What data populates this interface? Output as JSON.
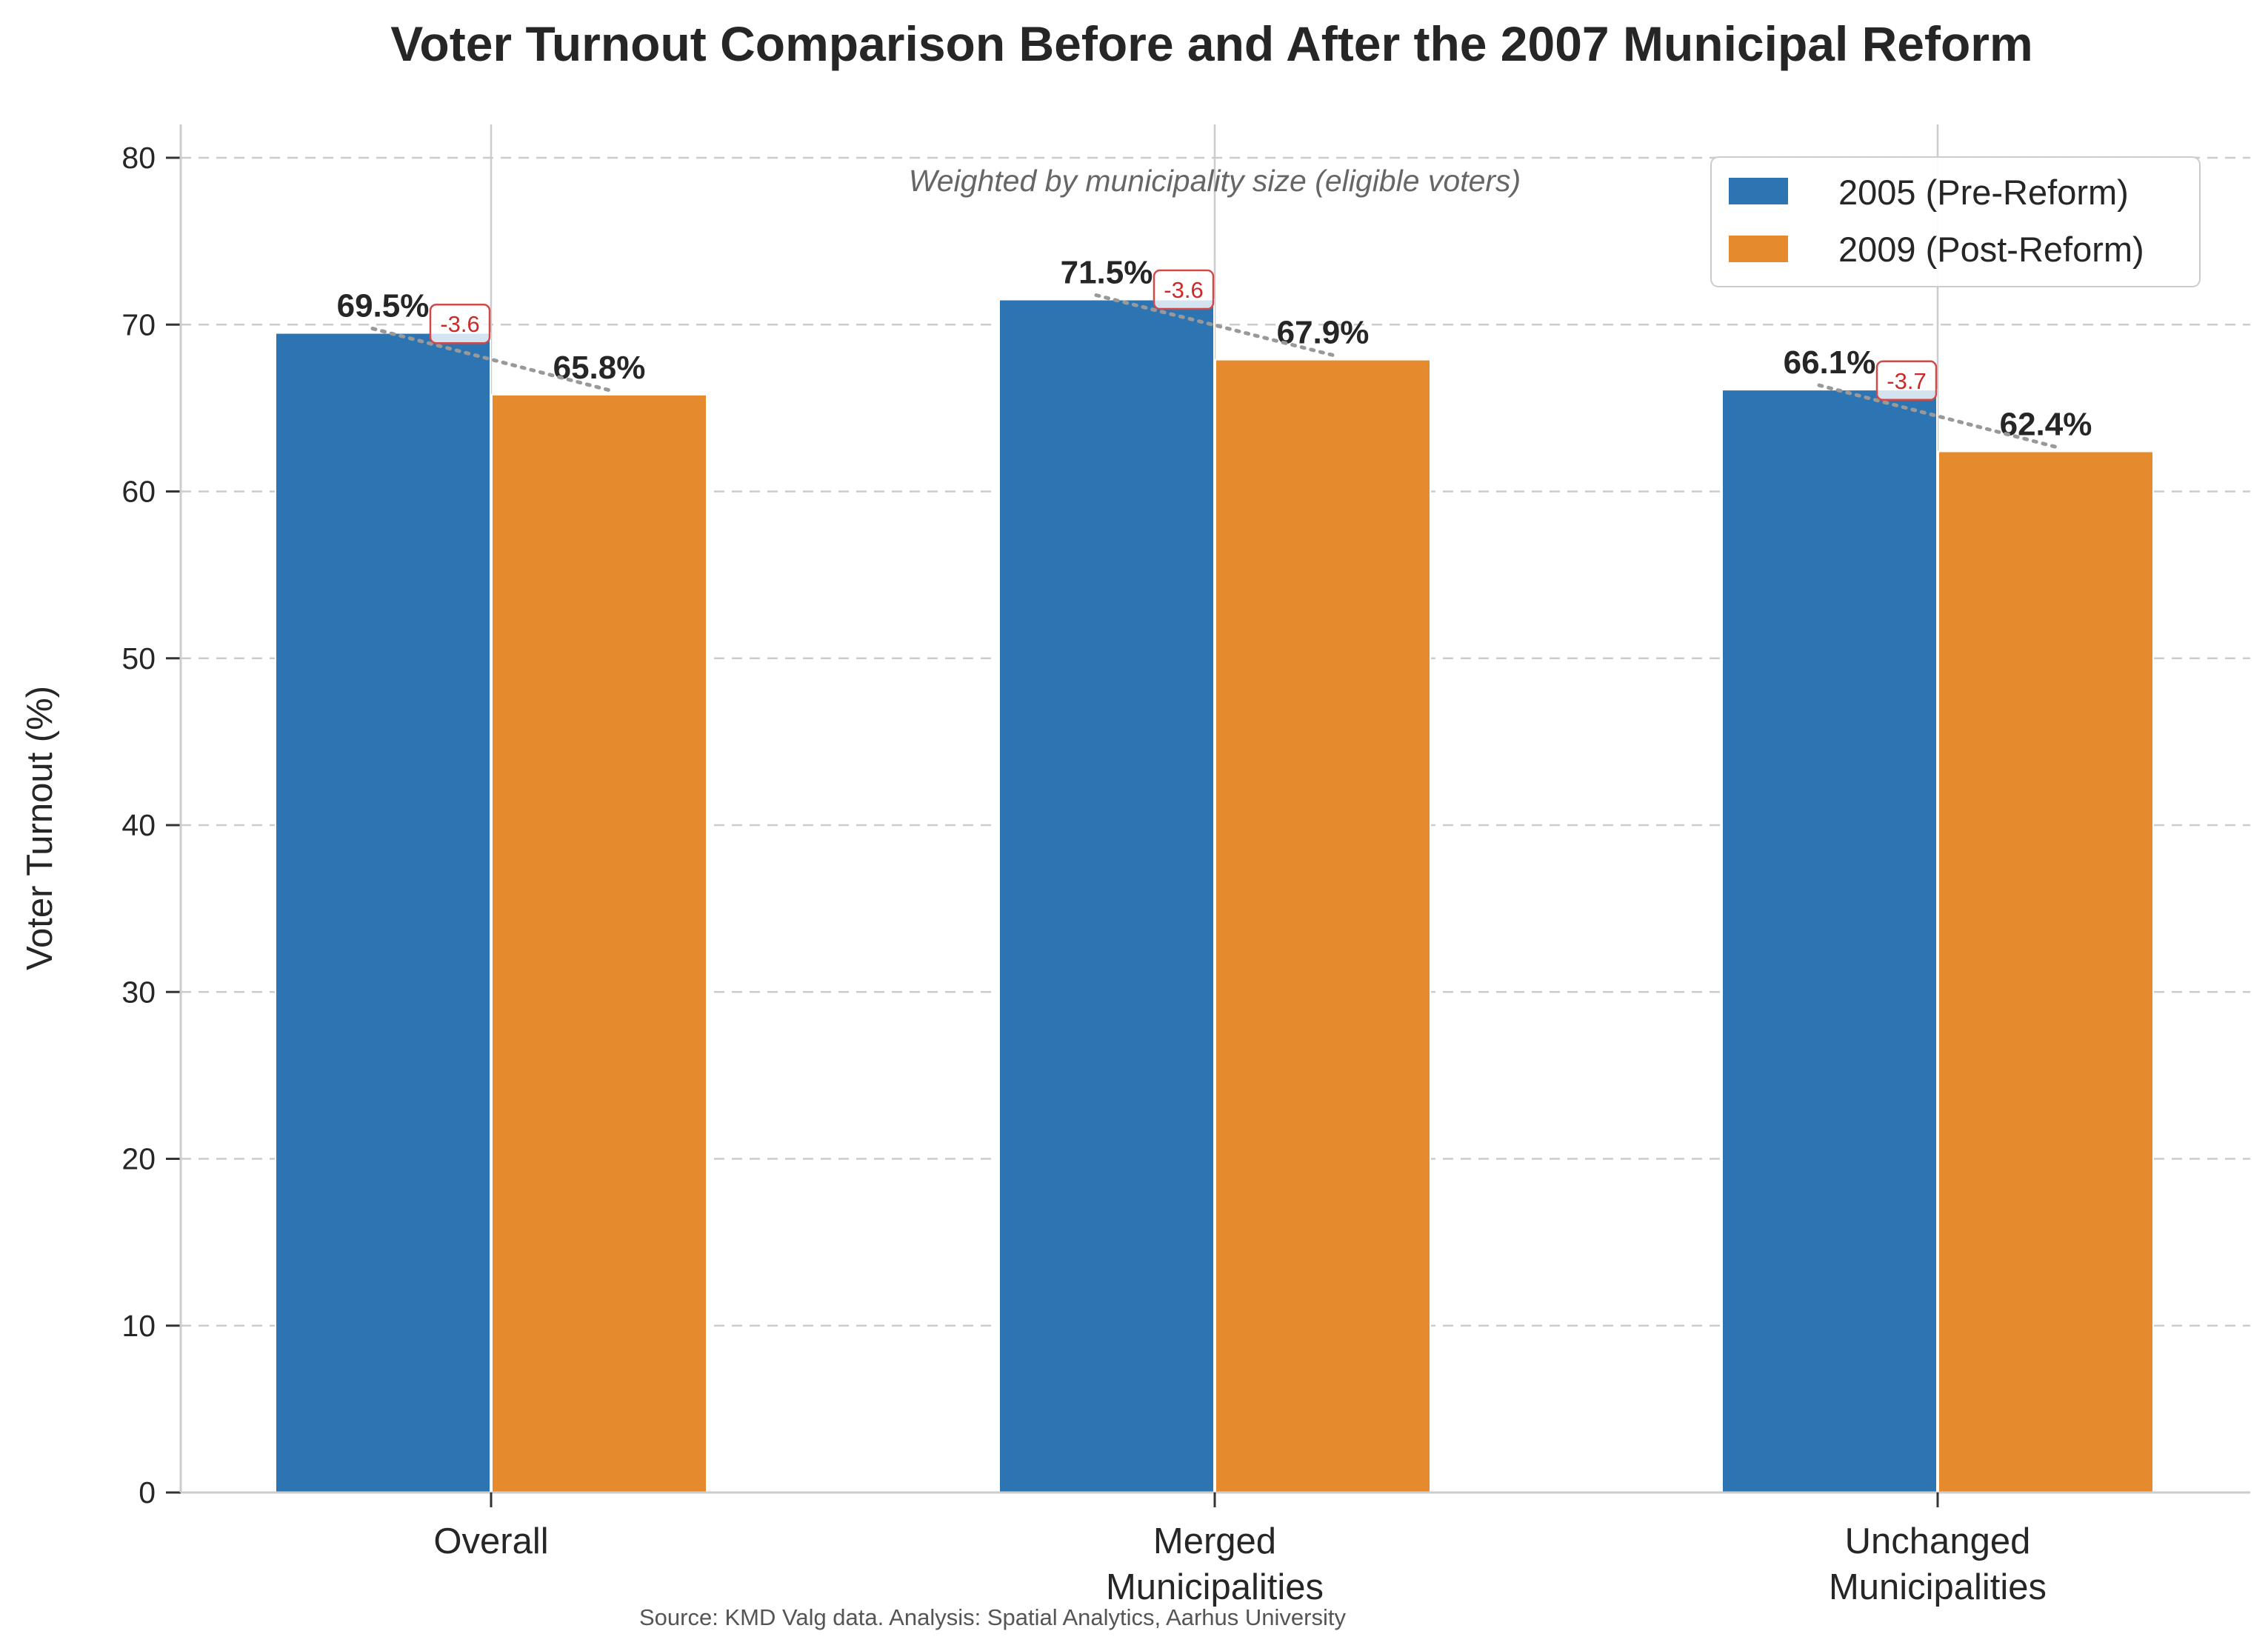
{
  "chart_data": {
    "type": "bar",
    "title": "Voter Turnout Comparison Before and After the 2007 Municipal Reform",
    "subtitle": "Weighted by municipality size (eligible voters)",
    "xlabel": "",
    "ylabel": "Voter Turnout (%)",
    "ylim": [
      0,
      82
    ],
    "yticks": [
      "0",
      "10",
      "20",
      "30",
      "40",
      "50",
      "60",
      "70",
      "80"
    ],
    "grid": "horizontal dashed",
    "legend_position": "top-right",
    "categories": [
      [
        "Overall"
      ],
      [
        "Merged",
        "Municipalities"
      ],
      [
        "Unchanged",
        "Municipalities"
      ]
    ],
    "series": [
      {
        "name": "2005 (Pre-Reform)",
        "color": "#2c74b2",
        "values": [
          69.5,
          71.5,
          66.1
        ],
        "labels": [
          "69.5%",
          "71.5%",
          "66.1%"
        ]
      },
      {
        "name": "2009 (Post-Reform)",
        "color": "#e68a2e",
        "values": [
          65.8,
          67.9,
          62.4
        ],
        "labels": [
          "65.8%",
          "67.9%",
          "62.4%"
        ]
      }
    ],
    "differences": [
      "-3.6",
      "-3.6",
      "-3.7"
    ],
    "source": "Source: KMD Valg data. Analysis: Spatial Analytics, Aarhus University"
  }
}
